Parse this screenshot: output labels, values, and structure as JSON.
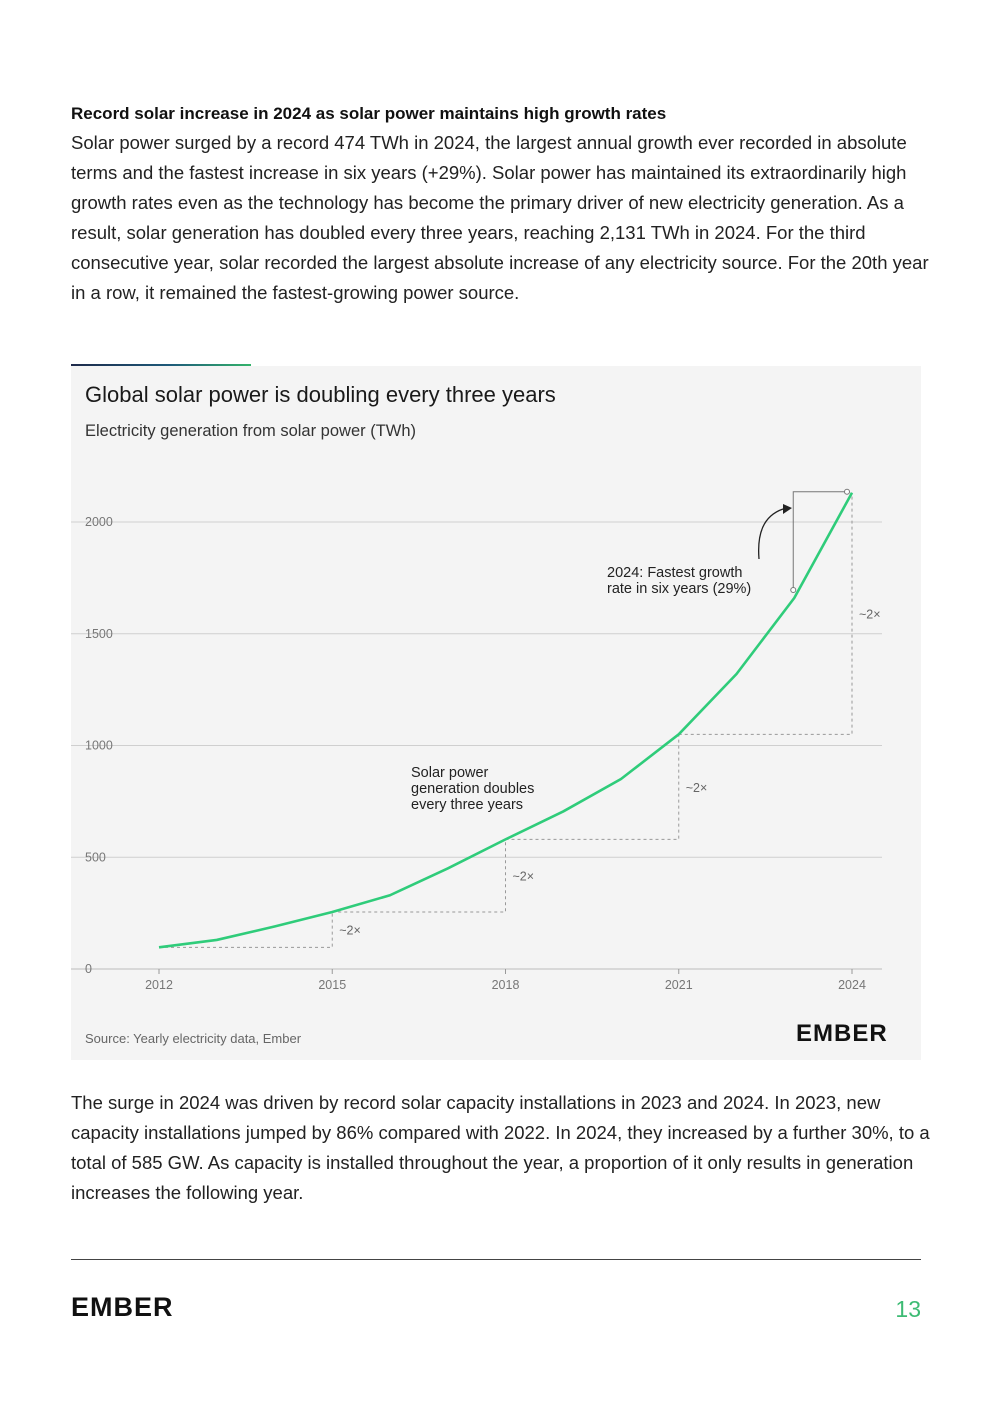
{
  "section": {
    "heading": "Record solar increase in 2024 as solar power maintains high growth rates",
    "paragraph_1": "Solar power surged by a record 474 TWh in 2024, the largest annual growth ever recorded in absolute terms and the fastest increase in six years (+29%). Solar power has maintained its extraordinarily high growth rates even as the technology has become the primary driver of new electricity generation. As a result, solar generation has doubled every three years, reaching 2,131 TWh in 2024. For the third consecutive year, solar recorded the largest absolute increase of any electricity source. For the 20th year in a row, it remained the fastest-growing power source.",
    "paragraph_2": "The surge in 2024 was driven by record solar capacity installations in 2023 and 2024. In 2023, new capacity installations jumped by 86% compared with 2022. In 2024, they increased by a further 30%, to a total of 585 GW. As capacity is installed throughout the year, a proportion of it only results in generation increases the following year."
  },
  "chart": {
    "title": "Global solar power is doubling every three years",
    "subtitle": "Electricity generation from solar power (TWh)",
    "source": "Source: Yearly electricity data, Ember",
    "logo_text": "EMBER"
  },
  "chart_data": {
    "type": "line",
    "title": "Global solar power is doubling every three years",
    "subtitle": "Electricity generation from solar power (TWh)",
    "xlabel": "",
    "ylabel": "",
    "x": [
      2012,
      2013,
      2014,
      2015,
      2016,
      2017,
      2018,
      2019,
      2020,
      2021,
      2022,
      2023,
      2024
    ],
    "series": [
      {
        "values": [
          97,
          130,
          190,
          255,
          330,
          450,
          580,
          705,
          850,
          1050,
          1320,
          1660,
          2131
        ],
        "color": "#2fcc7a"
      }
    ],
    "xticks": [
      2012,
      2015,
      2018,
      2021,
      2024
    ],
    "yticks": [
      0,
      500,
      1000,
      1500,
      2000
    ],
    "xlim": [
      2012,
      2024
    ],
    "ylim": [
      0,
      2150
    ],
    "grid": "horizontal",
    "annotations": {
      "doubling_text_lines": [
        "Solar power",
        "generation doubles",
        "every three years"
      ],
      "fastest_text_lines": [
        "2024: Fastest growth",
        "rate in six years (29%)"
      ],
      "multiplier_label": "~2×",
      "doubling_steps": [
        {
          "from_year": 2012,
          "to_year": 2015
        },
        {
          "from_year": 2015,
          "to_year": 2018
        },
        {
          "from_year": 2018,
          "to_year": 2021
        },
        {
          "from_year": 2021,
          "to_year": 2024
        }
      ],
      "growth_bracket": {
        "from_year": 2023,
        "to_year": 2024
      }
    }
  },
  "footer": {
    "logo_text": "EMBER",
    "page_number": "13"
  },
  "colors": {
    "accent_green": "#3dbb74",
    "line_green": "#2fcc7a",
    "panel_bg": "#f4f4f4"
  }
}
